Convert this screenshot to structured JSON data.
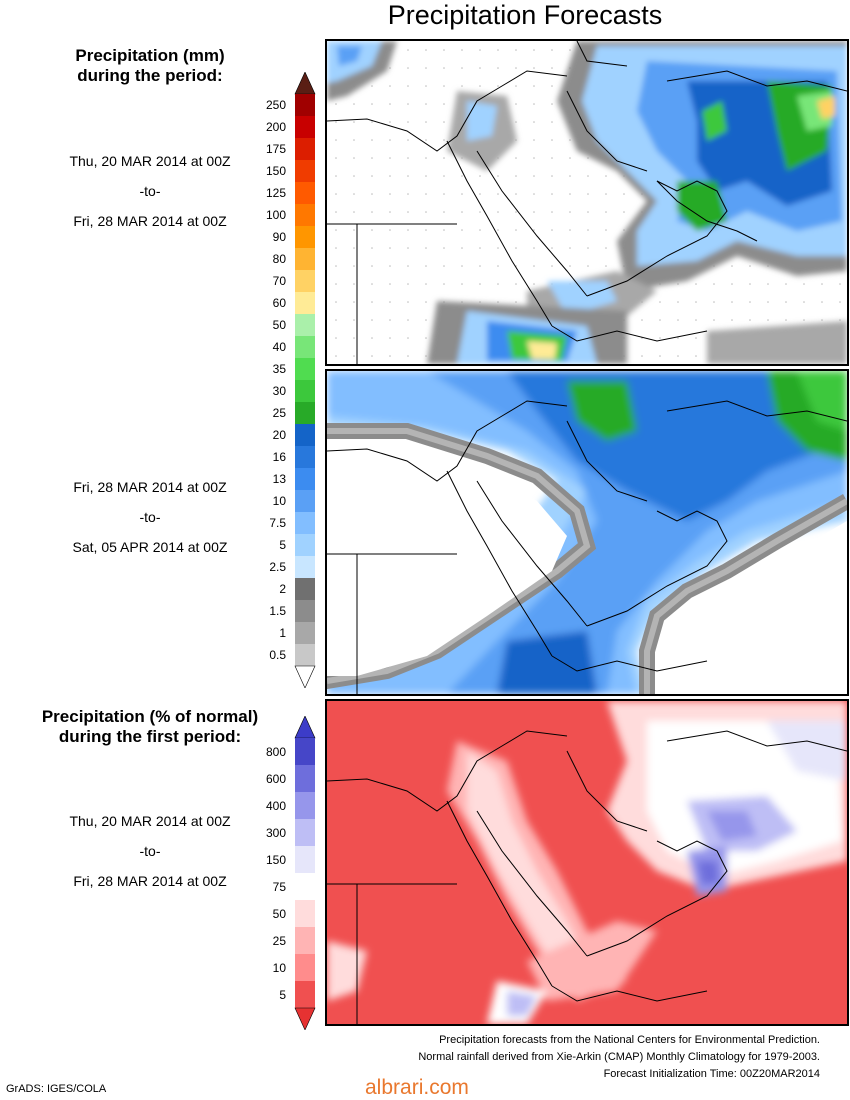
{
  "title": "Precipitation Forecasts",
  "legend_mm": {
    "title_line1": "Precipitation (mm)",
    "title_line2": "during the period:",
    "levels": [
      "250",
      "200",
      "175",
      "150",
      "125",
      "100",
      "90",
      "80",
      "70",
      "60",
      "50",
      "40",
      "35",
      "30",
      "25",
      "20",
      "16",
      "13",
      "10",
      "7.5",
      "5",
      "2.5",
      "2",
      "1.5",
      "1",
      "0.5"
    ],
    "colors": [
      "#a00000",
      "#c80000",
      "#dc1e00",
      "#f03c00",
      "#ff5a00",
      "#ff7800",
      "#ff9600",
      "#ffb432",
      "#ffd264",
      "#ffeb96",
      "#aaf0aa",
      "#78e678",
      "#50dc50",
      "#3cc83c",
      "#28aa28",
      "#1464c8",
      "#2878dc",
      "#3c8cf0",
      "#5aa0f5",
      "#82beff",
      "#a0d2ff",
      "#c8e6ff",
      "#707070",
      "#8c8c8c",
      "#a8a8a8",
      "#c8c8c8"
    ],
    "top_color": "#5a1e14",
    "bottom_color": "#ffffff"
  },
  "period1": {
    "start": "Thu, 20 MAR 2014 at 00Z",
    "sep": "-to-",
    "end": "Fri, 28 MAR 2014 at 00Z"
  },
  "period2": {
    "start": "Fri, 28 MAR 2014 at 00Z",
    "sep": "-to-",
    "end": "Sat, 05 APR 2014 at 00Z"
  },
  "legend_pct": {
    "title_line1": "Precipitation (% of normal)",
    "title_line2": "during the first period:",
    "levels": [
      "800",
      "600",
      "400",
      "300",
      "150",
      "75",
      "50",
      "25",
      "10",
      "5"
    ],
    "colors": [
      "#4646c8",
      "#6e6edc",
      "#9696eb",
      "#bebef5",
      "#e6e6fa",
      "#ffffff",
      "#ffdcdc",
      "#ffb4b4",
      "#ff8c8c",
      "#f05050"
    ],
    "top_color": "#3c3cc8",
    "bottom_color": "#e63232"
  },
  "period3": {
    "start": "Thu, 20 MAR 2014 at 00Z",
    "sep": "-to-",
    "end": "Fri, 28 MAR 2014 at 00Z"
  },
  "footer": {
    "line1": "Precipitation forecasts from the National Centers for Environmental Prediction.",
    "line2": "Normal rainfall derived from Xie-Arkin (CMAP) Monthly Climatology for 1979-2003.",
    "line3": "Forecast Initialization Time: 00Z20MAR2014"
  },
  "credit": "GrADS: IGES/COLA",
  "watermark": "albrari.com"
}
